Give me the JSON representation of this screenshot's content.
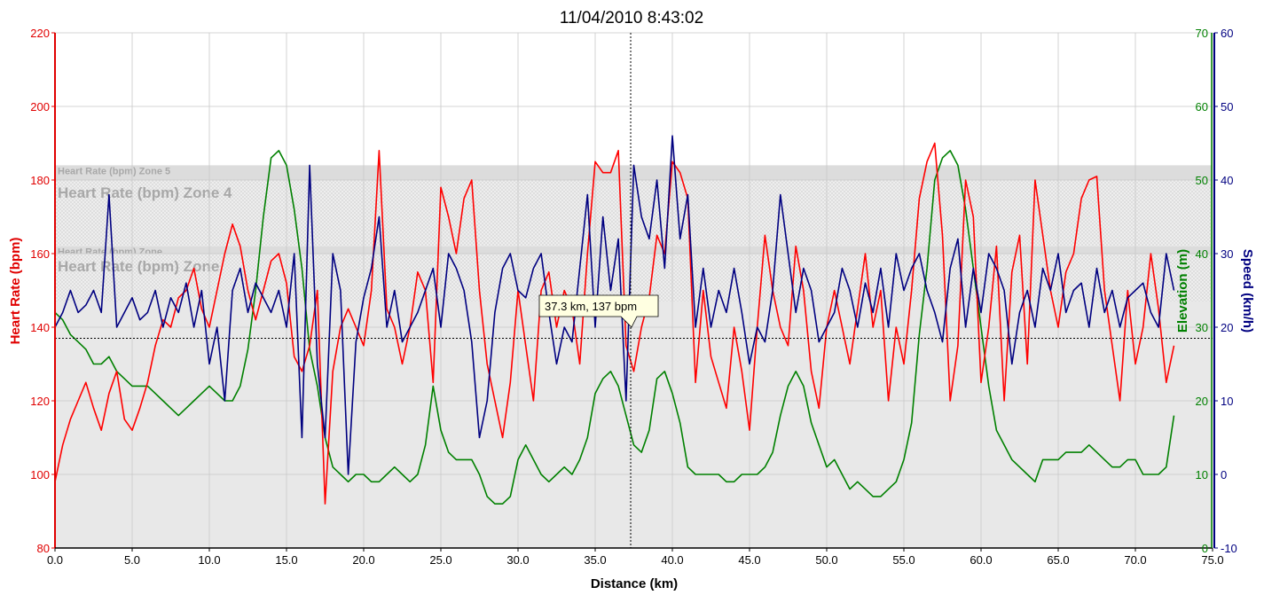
{
  "chart_data": {
    "type": "line",
    "title": "11/04/2010 8:43:02",
    "xlabel": "Distance (km)",
    "xlim": [
      0,
      75
    ],
    "x_ticks": [
      "0.0",
      "5.0",
      "10.0",
      "15.0",
      "20.0",
      "25.0",
      "30.0",
      "35.0",
      "40.0",
      "45.0",
      "50.0",
      "55.0",
      "60.0",
      "65.0",
      "70.0",
      "75.0"
    ],
    "y_axes": {
      "heart_rate": {
        "label": "Heart Rate (bpm)",
        "color": "#e00000",
        "ylim": [
          80,
          220
        ],
        "ticks": [
          "80",
          "100",
          "120",
          "140",
          "160",
          "180",
          "200",
          "220"
        ]
      },
      "elevation": {
        "label": "Elevation (m)",
        "color": "#008000",
        "ylim": [
          0,
          70
        ],
        "ticks": [
          "0",
          "10",
          "20",
          "30",
          "40",
          "50",
          "60",
          "70"
        ]
      },
      "speed": {
        "label": "Speed (km/h)",
        "color": "#000080",
        "ylim": [
          -10,
          60
        ],
        "ticks": [
          "-10",
          "0",
          "10",
          "20",
          "30",
          "40",
          "50",
          "60"
        ]
      }
    },
    "zones": [
      {
        "name": "Heart Rate (bpm) Zone 5",
        "from": 180,
        "to": 184,
        "label_size": "small"
      },
      {
        "name": "Heart Rate (bpm) Zone 4",
        "from": 162,
        "to": 180,
        "label_size": "large"
      },
      {
        "name": "Heart Rate (bpm) Zone",
        "from": 160,
        "to": 162,
        "label_size": "small"
      },
      {
        "name": "Heart Rate (bpm) Zone",
        "from": 144,
        "to": 160,
        "label_size": "large"
      },
      {
        "name": "",
        "from": 80,
        "to": 147,
        "label_size": "none"
      }
    ],
    "crosshair": {
      "x": 37.3,
      "hr": 137
    },
    "tooltip": "37.3 km, 137 bpm",
    "grid": true,
    "series": [
      {
        "name": "Heart Rate (bpm)",
        "axis": "heart_rate",
        "color": "#ff0000",
        "x": [
          0,
          0.5,
          1,
          1.5,
          2,
          2.5,
          3,
          3.5,
          4,
          4.5,
          5,
          5.5,
          6,
          6.5,
          7,
          7.5,
          8,
          8.5,
          9,
          9.5,
          10,
          10.5,
          11,
          11.5,
          12,
          12.5,
          13,
          13.5,
          14,
          14.5,
          15,
          15.5,
          16,
          16.5,
          17,
          17.5,
          18,
          18.5,
          19,
          19.5,
          20,
          20.5,
          21,
          21.5,
          22,
          22.5,
          23,
          23.5,
          24,
          24.5,
          25,
          25.5,
          26,
          26.5,
          27,
          27.5,
          28,
          28.5,
          29,
          29.5,
          30,
          30.5,
          31,
          31.5,
          32,
          32.5,
          33,
          33.5,
          34,
          34.5,
          35,
          35.5,
          36,
          36.5,
          37,
          37.5,
          38,
          38.5,
          39,
          39.5,
          40,
          40.5,
          41,
          41.5,
          42,
          42.5,
          43,
          43.5,
          44,
          44.5,
          45,
          45.5,
          46,
          46.5,
          47,
          47.5,
          48,
          48.5,
          49,
          49.5,
          50,
          50.5,
          51,
          51.5,
          52,
          52.5,
          53,
          53.5,
          54,
          54.5,
          55,
          55.5,
          56,
          56.5,
          57,
          57.5,
          58,
          58.5,
          59,
          59.5,
          60,
          60.5,
          61,
          61.5,
          62,
          62.5,
          63,
          63.5,
          64,
          64.5,
          65,
          65.5,
          66,
          66.5,
          67,
          67.5,
          68,
          68.5,
          69,
          69.5,
          70,
          70.5,
          71,
          71.5,
          72,
          72.5
        ],
        "y": [
          98,
          108,
          115,
          120,
          125,
          118,
          112,
          122,
          128,
          115,
          112,
          118,
          125,
          135,
          142,
          140,
          148,
          150,
          156,
          145,
          140,
          150,
          160,
          168,
          162,
          150,
          142,
          150,
          158,
          160,
          152,
          132,
          128,
          135,
          150,
          92,
          128,
          140,
          145,
          140,
          135,
          150,
          188,
          145,
          140,
          130,
          140,
          155,
          150,
          125,
          178,
          170,
          160,
          175,
          180,
          150,
          130,
          120,
          110,
          125,
          150,
          135,
          120,
          150,
          155,
          140,
          150,
          145,
          130,
          160,
          185,
          182,
          182,
          188,
          135,
          128,
          140,
          148,
          165,
          160,
          185,
          182,
          175,
          125,
          150,
          132,
          125,
          118,
          140,
          128,
          112,
          140,
          165,
          150,
          140,
          135,
          162,
          150,
          128,
          118,
          140,
          150,
          140,
          130,
          145,
          160,
          140,
          150,
          120,
          140,
          130,
          150,
          175,
          185,
          190,
          165,
          120,
          135,
          180,
          170,
          125,
          140,
          162,
          120,
          155,
          165,
          130,
          180,
          165,
          150,
          140,
          155,
          160,
          175,
          180,
          181,
          150,
          135,
          120,
          150,
          130,
          140,
          160,
          145,
          125,
          135
        ]
      },
      {
        "name": "Elevation (m)",
        "axis": "elevation",
        "color": "#008000",
        "x": [
          0,
          0.5,
          1,
          1.5,
          2,
          2.5,
          3,
          3.5,
          4,
          4.5,
          5,
          5.5,
          6,
          6.5,
          7,
          7.5,
          8,
          8.5,
          9,
          9.5,
          10,
          10.5,
          11,
          11.5,
          12,
          12.5,
          13,
          13.5,
          14,
          14.5,
          15,
          15.5,
          16,
          16.5,
          17,
          17.5,
          18,
          18.5,
          19,
          19.5,
          20,
          20.5,
          21,
          21.5,
          22,
          22.5,
          23,
          23.5,
          24,
          24.5,
          25,
          25.5,
          26,
          26.5,
          27,
          27.5,
          28,
          28.5,
          29,
          29.5,
          30,
          30.5,
          31,
          31.5,
          32,
          32.5,
          33,
          33.5,
          34,
          34.5,
          35,
          35.5,
          36,
          36.5,
          37,
          37.5,
          38,
          38.5,
          39,
          39.5,
          40,
          40.5,
          41,
          41.5,
          42,
          42.5,
          43,
          43.5,
          44,
          44.5,
          45,
          45.5,
          46,
          46.5,
          47,
          47.5,
          48,
          48.5,
          49,
          49.5,
          50,
          50.5,
          51,
          51.5,
          52,
          52.5,
          53,
          53.5,
          54,
          54.5,
          55,
          55.5,
          56,
          56.5,
          57,
          57.5,
          58,
          58.5,
          59,
          59.5,
          60,
          60.5,
          61,
          61.5,
          62,
          62.5,
          63,
          63.5,
          64,
          64.5,
          65,
          65.5,
          66,
          66.5,
          67,
          67.5,
          68,
          68.5,
          69,
          69.5,
          70,
          70.5,
          71,
          71.5,
          72,
          72.5
        ],
        "y": [
          32,
          31,
          29,
          28,
          27,
          25,
          25,
          26,
          24,
          23,
          22,
          22,
          22,
          21,
          20,
          19,
          18,
          19,
          20,
          21,
          22,
          21,
          20,
          20,
          22,
          27,
          35,
          45,
          53,
          54,
          52,
          46,
          38,
          27,
          22,
          15,
          11,
          10,
          9,
          10,
          10,
          9,
          9,
          10,
          11,
          10,
          9,
          10,
          14,
          22,
          16,
          13,
          12,
          12,
          12,
          10,
          7,
          6,
          6,
          7,
          12,
          14,
          12,
          10,
          9,
          10,
          11,
          10,
          12,
          15,
          21,
          23,
          24,
          22,
          18,
          14,
          13,
          16,
          23,
          24,
          21,
          17,
          11,
          10,
          10,
          10,
          10,
          9,
          9,
          10,
          10,
          10,
          11,
          13,
          18,
          22,
          24,
          22,
          17,
          14,
          11,
          12,
          10,
          8,
          9,
          8,
          7,
          7,
          8,
          9,
          12,
          17,
          29,
          38,
          50,
          53,
          54,
          52,
          46,
          38,
          30,
          22,
          16,
          14,
          12,
          11,
          10,
          9,
          12,
          12,
          12,
          13,
          13,
          13,
          14,
          13,
          12,
          11,
          11,
          12,
          12,
          10,
          10,
          10,
          11,
          18
        ]
      },
      {
        "name": "Speed (km/h)",
        "axis": "speed",
        "color": "#000080",
        "x": [
          0,
          0.5,
          1,
          1.5,
          2,
          2.5,
          3,
          3.5,
          4,
          4.5,
          5,
          5.5,
          6,
          6.5,
          7,
          7.5,
          8,
          8.5,
          9,
          9.5,
          10,
          10.5,
          11,
          11.5,
          12,
          12.5,
          13,
          13.5,
          14,
          14.5,
          15,
          15.5,
          16,
          16.5,
          17,
          17.5,
          18,
          18.5,
          19,
          19.5,
          20,
          20.5,
          21,
          21.5,
          22,
          22.5,
          23,
          23.5,
          24,
          24.5,
          25,
          25.5,
          26,
          26.5,
          27,
          27.5,
          28,
          28.5,
          29,
          29.5,
          30,
          30.5,
          31,
          31.5,
          32,
          32.5,
          33,
          33.5,
          34,
          34.5,
          35,
          35.5,
          36,
          36.5,
          37,
          37.5,
          38,
          38.5,
          39,
          39.5,
          40,
          40.5,
          41,
          41.5,
          42,
          42.5,
          43,
          43.5,
          44,
          44.5,
          45,
          45.5,
          46,
          46.5,
          47,
          47.5,
          48,
          48.5,
          49,
          49.5,
          50,
          50.5,
          51,
          51.5,
          52,
          52.5,
          53,
          53.5,
          54,
          54.5,
          55,
          55.5,
          56,
          56.5,
          57,
          57.5,
          58,
          58.5,
          59,
          59.5,
          60,
          60.5,
          61,
          61.5,
          62,
          62.5,
          63,
          63.5,
          64,
          64.5,
          65,
          65.5,
          66,
          66.5,
          67,
          67.5,
          68,
          68.5,
          69,
          69.5,
          70,
          70.5,
          71,
          71.5,
          72,
          72.5
        ],
        "y": [
          20,
          22,
          25,
          22,
          23,
          25,
          22,
          38,
          20,
          22,
          24,
          21,
          22,
          25,
          20,
          24,
          22,
          26,
          20,
          25,
          15,
          20,
          10,
          25,
          28,
          22,
          26,
          24,
          22,
          25,
          20,
          30,
          5,
          42,
          15,
          5,
          30,
          25,
          0,
          18,
          24,
          28,
          35,
          20,
          25,
          18,
          20,
          22,
          25,
          28,
          20,
          30,
          28,
          25,
          18,
          5,
          10,
          22,
          28,
          30,
          25,
          24,
          28,
          30,
          22,
          15,
          20,
          18,
          28,
          38,
          20,
          35,
          25,
          32,
          10,
          42,
          35,
          32,
          40,
          28,
          46,
          32,
          38,
          20,
          28,
          20,
          25,
          22,
          28,
          22,
          15,
          20,
          18,
          25,
          38,
          30,
          22,
          28,
          25,
          18,
          20,
          22,
          28,
          25,
          20,
          26,
          22,
          28,
          20,
          30,
          25,
          28,
          30,
          25,
          22,
          18,
          28,
          32,
          20,
          28,
          22,
          30,
          28,
          25,
          15,
          22,
          25,
          20,
          28,
          25,
          30,
          22,
          25,
          26,
          20,
          28,
          22,
          25,
          20,
          24,
          25,
          26,
          22,
          20,
          30,
          25
        ]
      }
    ]
  }
}
